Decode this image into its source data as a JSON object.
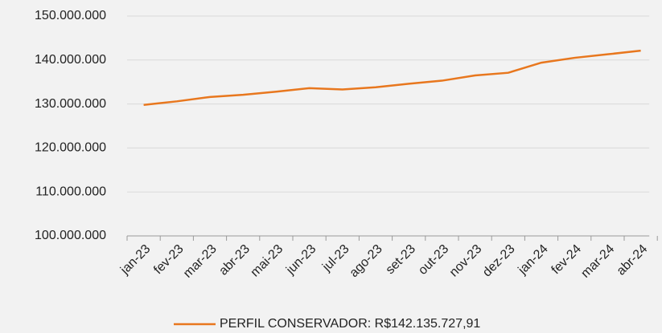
{
  "chart_data": {
    "type": "line",
    "categories": [
      "jan-23",
      "fev-23",
      "mar-23",
      "abr-23",
      "mai-23",
      "jun-23",
      "jul-23",
      "ago-23",
      "set-23",
      "out-23",
      "nov-23",
      "dez-23",
      "jan-24",
      "fev-24",
      "mar-24",
      "abr-24"
    ],
    "series": [
      {
        "name": "PERFIL CONSERVADOR:  R$142.135.727,91",
        "color": "#e8771e",
        "values": [
          129800000,
          130600000,
          131600000,
          132100000,
          132800000,
          133600000,
          133300000,
          133800000,
          134600000,
          135300000,
          136500000,
          137100000,
          139400000,
          140500000,
          141300000,
          142135728
        ]
      }
    ],
    "ylim": [
      100000000,
      150000000
    ],
    "yticks": [
      {
        "value": 100000000,
        "label": "100.000.000"
      },
      {
        "value": 110000000,
        "label": "110.000.000"
      },
      {
        "value": 120000000,
        "label": "120.000.000"
      },
      {
        "value": 130000000,
        "label": "130.000.000"
      },
      {
        "value": 140000000,
        "label": "140.000.000"
      },
      {
        "value": 150000000,
        "label": "150.000.000"
      }
    ],
    "grid": true,
    "legend": "bottom"
  }
}
